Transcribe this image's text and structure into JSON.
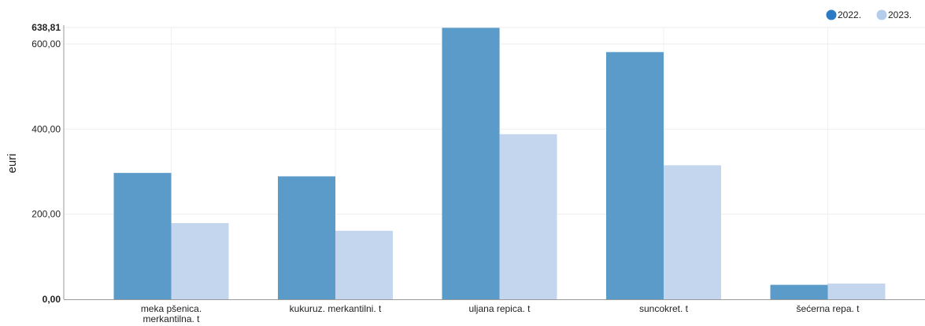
{
  "chart_data": {
    "type": "bar",
    "ylabel": "euri",
    "ylim": [
      0,
      638.81
    ],
    "yticks": [
      "0,00",
      "200,00",
      "400,00",
      "600,00",
      "638,81"
    ],
    "ytick_values": [
      0,
      200,
      400,
      600,
      638.81
    ],
    "categories": [
      [
        "meka pšenica.",
        "merkantilna. t"
      ],
      [
        "kukuruz. merkantilni. t"
      ],
      [
        "uljana repica. t"
      ],
      [
        "suncokret. t"
      ],
      [
        "šećerna repa. t"
      ]
    ],
    "series": [
      {
        "name": "2022.",
        "color": "#5a9bc9",
        "legend_color": "#2b7bc4",
        "values": [
          297,
          289,
          638,
          581,
          34
        ]
      },
      {
        "name": "2023.",
        "color": "#c4d6ed",
        "legend_color": "#b3cdea",
        "values": [
          179,
          161,
          388,
          315,
          37
        ]
      }
    ],
    "grid": true,
    "legend_position": "top-right"
  }
}
